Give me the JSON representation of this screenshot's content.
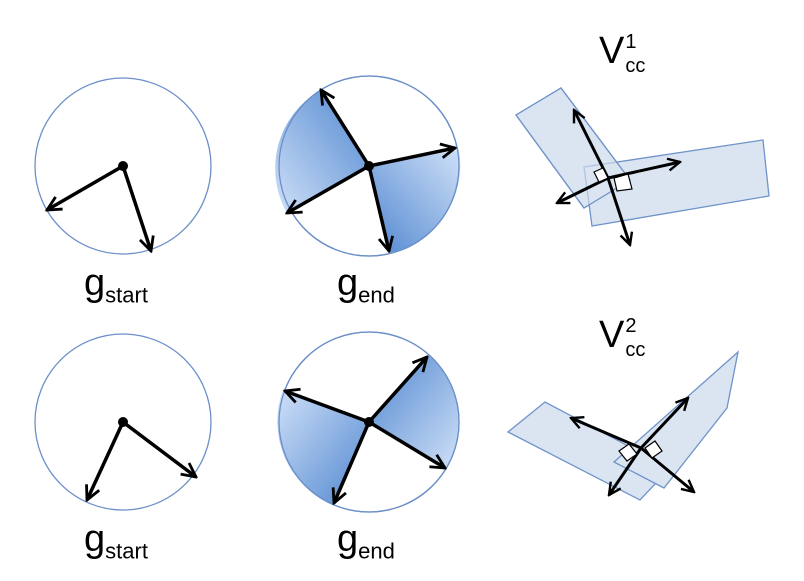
{
  "labels": {
    "row1": {
      "start": {
        "base": "g",
        "sub": "start"
      },
      "end": {
        "base": "g",
        "sub": "end"
      },
      "v": {
        "base": "V",
        "sup": "1",
        "sub": "cc"
      }
    },
    "row2": {
      "start": {
        "base": "g",
        "sub": "start"
      },
      "end": {
        "base": "g",
        "sub": "end"
      },
      "v": {
        "base": "V",
        "sup": "2",
        "sub": "cc"
      }
    }
  },
  "colors": {
    "circle_stroke": "#6b8fc8",
    "sector_light": "#cfe0f8",
    "sector_dark": "#4f86cf",
    "band_fill": "#dbe5f2",
    "band_stroke": "#6f93c9",
    "arrow": "#000000"
  }
}
